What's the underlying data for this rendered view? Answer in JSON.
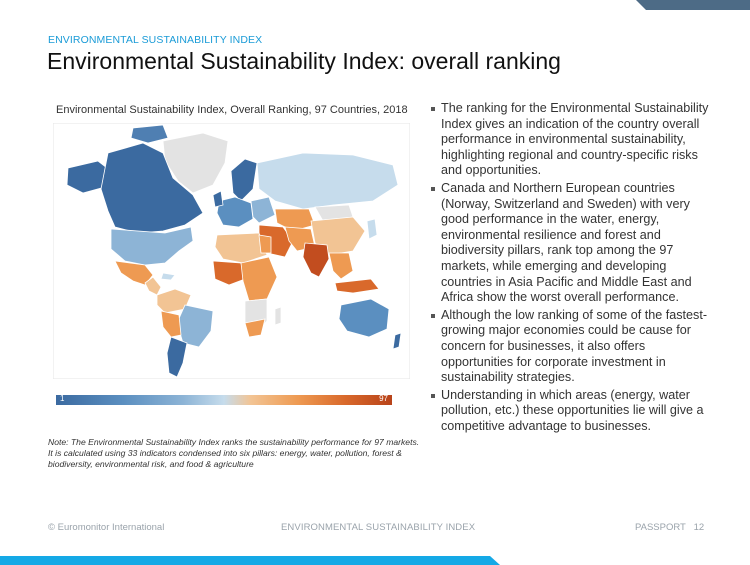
{
  "header": {
    "kicker": "ENVIRONMENTAL SUSTAINABILITY INDEX",
    "title": "Environmental Sustainability Index: overall ranking"
  },
  "map": {
    "title": "Environmental Sustainability Index, Overall Ranking, 97 Countries, 2018",
    "scale_min": "1",
    "scale_max": "97",
    "colors": {
      "top": "#3b6aa0",
      "mid_blue": "#8db4d6",
      "light_blue": "#c6dcec",
      "light_orange": "#f2c494",
      "orange": "#ee9a52",
      "dark_orange": "#c24d1f",
      "no_data": "#e3e3e3"
    }
  },
  "note": "Note: The Environmental Sustainability Index ranks the sustainability performance for 97 markets. It is calculated using 33 indicators condensed into six pillars: energy, water, pollution, forest & biodiversity, environmental risk, and food & agriculture",
  "bullets": [
    "The ranking for the Environmental Sustainability Index gives an indication of the country overall performance in environmental sustainability, highlighting regional and country-specific risks and opportunities.",
    "Canada and Northern European countries (Norway, Switzerland and Sweden) with very good performance in the water, energy, environmental resilience and forest and biodiversity pillars, rank top among the 97 markets, while emerging and developing countries in Asia Pacific and Middle East and Africa show the worst overall performance.",
    "Although the low ranking of some of the fastest-growing major economies could be cause for concern for businesses, it also offers opportunities for corporate investment in sustainability strategies.",
    "Understanding in which areas (energy, water pollution, etc.) these opportunities lie will give a competitive advantage to businesses."
  ],
  "footer": {
    "left": "© Euromonitor International",
    "center": "ENVIRONMENTAL SUSTAINABILITY INDEX",
    "right": "PASSPORT   12"
  }
}
